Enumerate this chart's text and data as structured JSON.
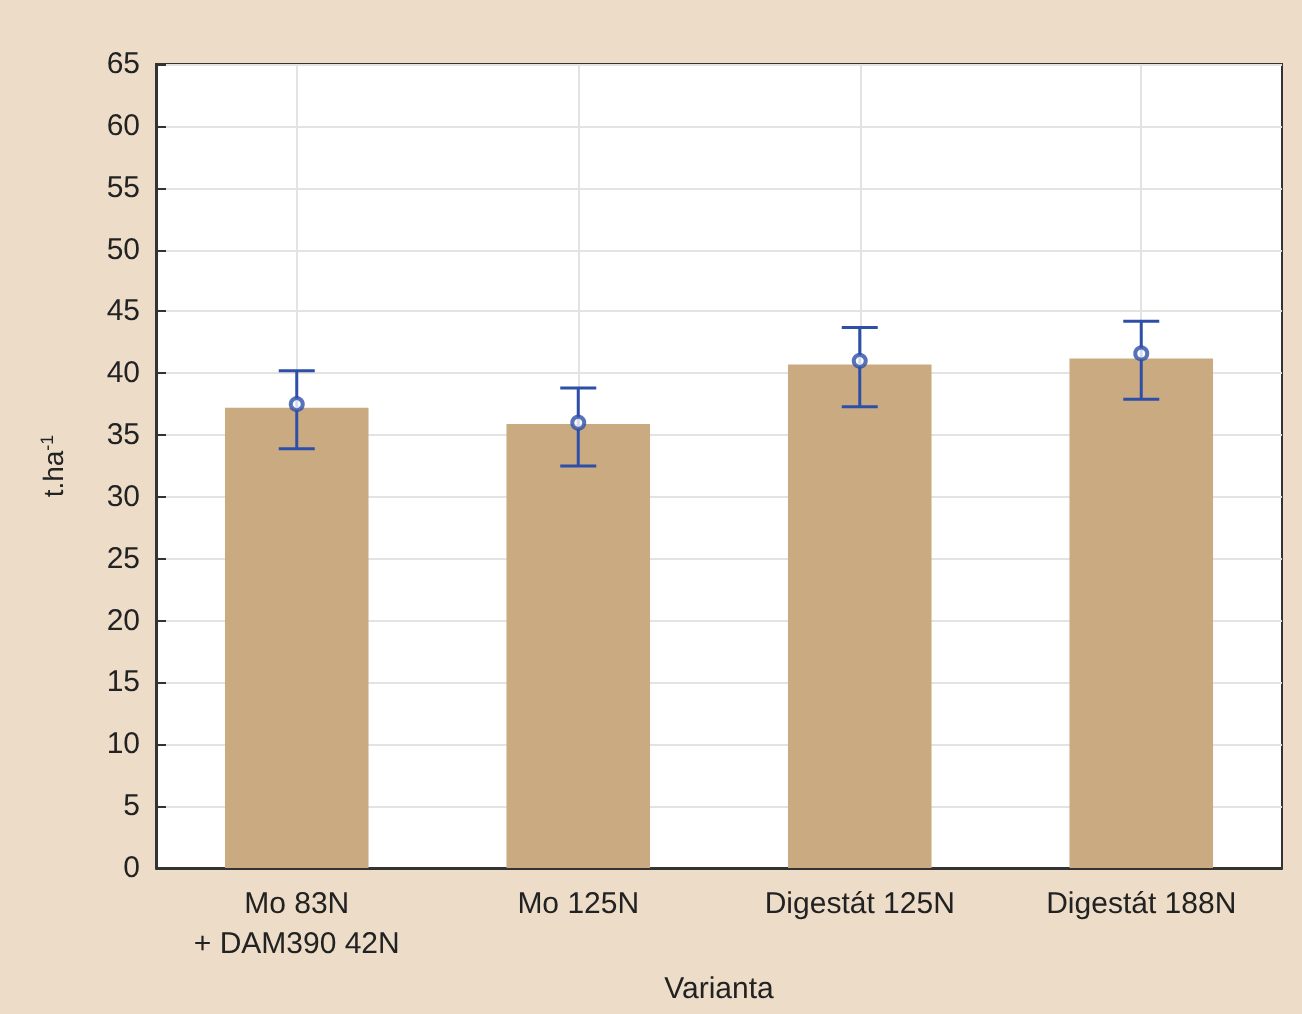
{
  "chart_data": {
    "type": "bar",
    "xlabel": "Varianta",
    "ylabel": "t.ha$^{-1}$",
    "categories": [
      "Mo 83N\n+ DAM390 42N",
      "Mo 125N",
      "Digestát 125N",
      "Digestát 188N"
    ],
    "series": [
      {
        "color": "#caab81",
        "values": [
          37.2,
          35.9,
          40.7,
          41.2
        ]
      },
      {
        "type": "scatter",
        "color": "#2e4fa8",
        "x": [
          "Mo 83N\n+ DAM390 42N",
          "Mo 125N",
          "Digestát 125N",
          "Digestát 188N"
        ],
        "values": [
          37.5,
          36.0,
          41.0,
          41.6
        ],
        "errors": [
          [
            33.9,
            40.2
          ],
          [
            32.5,
            38.8
          ],
          [
            37.3,
            43.7
          ],
          [
            37.9,
            44.2
          ]
        ],
        "marker": "circle"
      }
    ],
    "ylim": [
      0,
      65
    ],
    "yticks": [
      0,
      5,
      10,
      15,
      20,
      25,
      30,
      35,
      40,
      45,
      50,
      55,
      60,
      65
    ],
    "grid": true
  }
}
